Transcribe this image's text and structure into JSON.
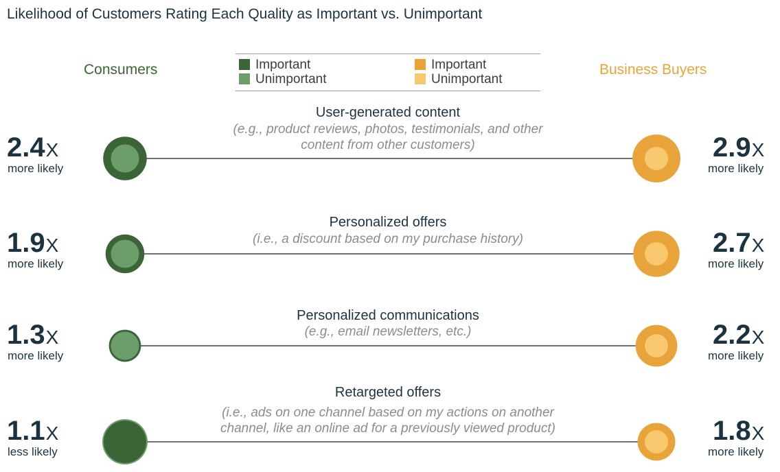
{
  "title": "Likelihood of Customers Rating Each Quality as Important vs. Unimportant",
  "groups": {
    "left": "Consumers",
    "right": "Business Buyers"
  },
  "legend": {
    "consumers": {
      "important": "Important",
      "unimportant": "Unimportant"
    },
    "business": {
      "important": "Important",
      "unimportant": "Unimportant"
    }
  },
  "colors": {
    "consumer_important": "#3b6536",
    "consumer_unimportant": "#6b9e6a",
    "business_important": "#e8a43a",
    "business_unimportant": "#f7c86d",
    "line": "#1b1b1b",
    "ratio_text": "#1b3340",
    "example_text": "#8c8c8c"
  },
  "chart_data": {
    "type": "bubble-ratio",
    "title": "Likelihood of Customers Rating Each Quality as Important vs. Unimportant",
    "series": [
      {
        "name": "Consumers",
        "side": "left"
      },
      {
        "name": "Business Buyers",
        "side": "right"
      }
    ],
    "rows": [
      {
        "quality": "User-generated content",
        "example": [
          "(e.g., product reviews, photos, testimonials, and other",
          "content from other customers)"
        ],
        "consumers": {
          "ratio": 2.4,
          "ratio_label": "2.4",
          "suffix": "X",
          "direction": "more likely"
        },
        "business": {
          "ratio": 2.9,
          "ratio_label": "2.9",
          "suffix": "X",
          "direction": "more likely"
        }
      },
      {
        "quality": "Personalized offers",
        "example": [
          "(i.e., a discount based on my purchase history)"
        ],
        "consumers": {
          "ratio": 1.9,
          "ratio_label": "1.9",
          "suffix": "X",
          "direction": "more likely"
        },
        "business": {
          "ratio": 2.7,
          "ratio_label": "2.7",
          "suffix": "X",
          "direction": "more likely"
        }
      },
      {
        "quality": "Personalized communications",
        "example": [
          "(e.g., email newsletters, etc.)"
        ],
        "consumers": {
          "ratio": 1.3,
          "ratio_label": "1.3",
          "suffix": "X",
          "direction": "more likely"
        },
        "business": {
          "ratio": 2.2,
          "ratio_label": "2.2",
          "suffix": "X",
          "direction": "more likely"
        }
      },
      {
        "quality": "Retargeted offers",
        "example": [
          "(i.e., ads on one channel based on my actions on another",
          "channel, like an online ad for a previously viewed product)"
        ],
        "consumers": {
          "ratio": 1.1,
          "ratio_label": "1.1",
          "suffix": "X",
          "direction": "less likely"
        },
        "business": {
          "ratio": 1.8,
          "ratio_label": "1.8",
          "suffix": "X",
          "direction": "more likely"
        }
      }
    ]
  }
}
